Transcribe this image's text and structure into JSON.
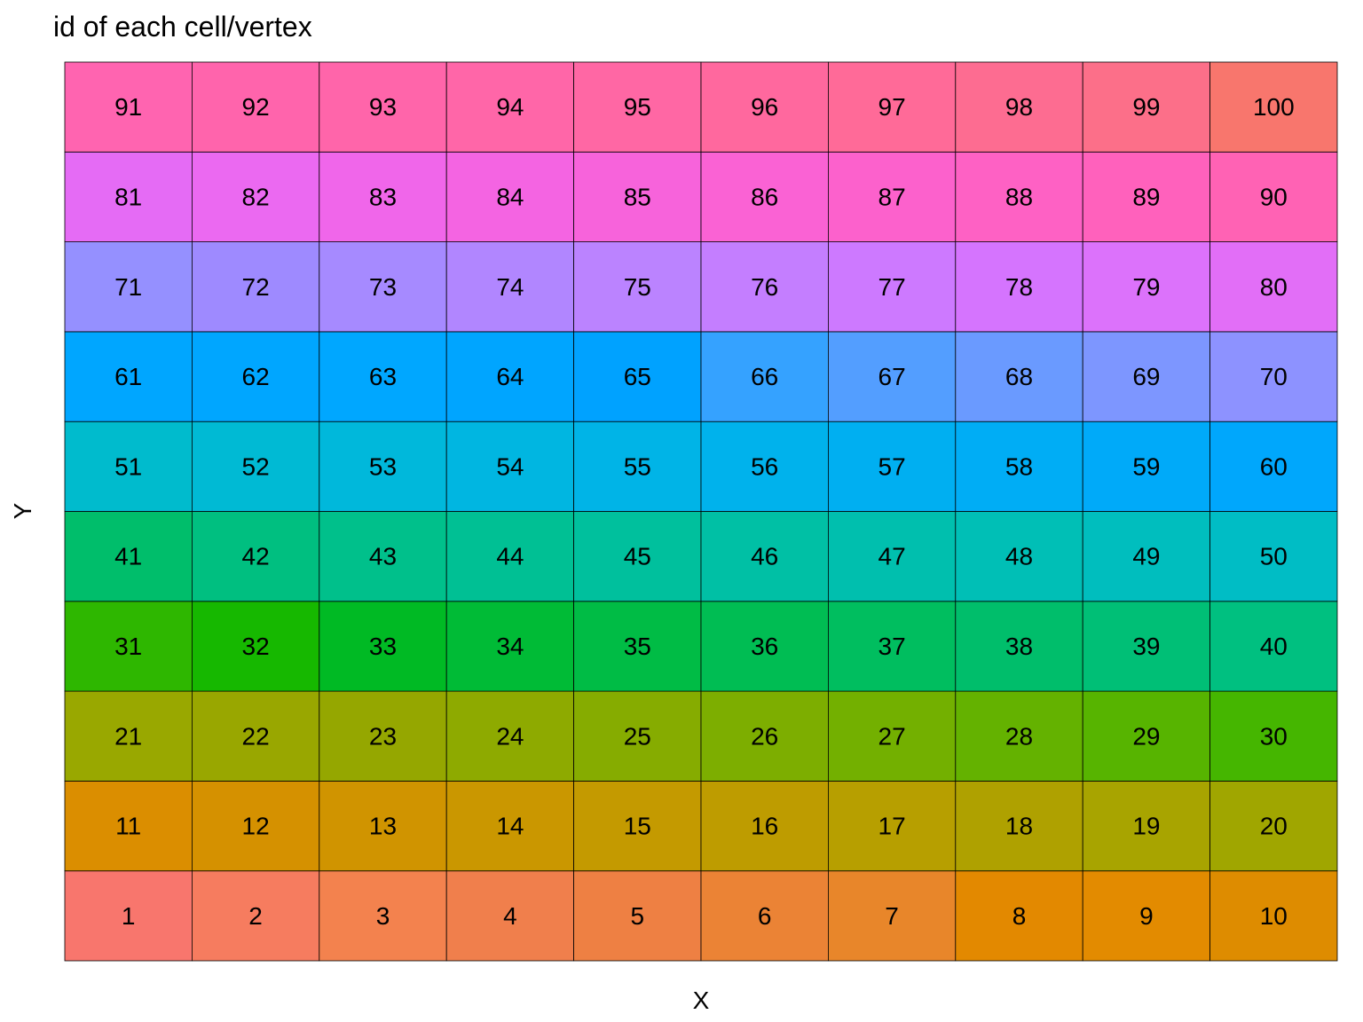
{
  "chart_data": {
    "type": "heatmap",
    "title": "id of each cell/vertex",
    "xlabel": "X",
    "ylabel": "Y",
    "ncols": 10,
    "nrows": 10,
    "ids": [
      1,
      2,
      3,
      4,
      5,
      6,
      7,
      8,
      9,
      10,
      11,
      12,
      13,
      14,
      15,
      16,
      17,
      18,
      19,
      20,
      21,
      22,
      23,
      24,
      25,
      26,
      27,
      28,
      29,
      30,
      31,
      32,
      33,
      34,
      35,
      36,
      37,
      38,
      39,
      40,
      41,
      42,
      43,
      44,
      45,
      46,
      47,
      48,
      49,
      50,
      51,
      52,
      53,
      54,
      55,
      56,
      57,
      58,
      59,
      60,
      61,
      62,
      63,
      64,
      65,
      66,
      67,
      68,
      69,
      70,
      71,
      72,
      73,
      74,
      75,
      76,
      77,
      78,
      79,
      80,
      81,
      82,
      83,
      84,
      85,
      86,
      87,
      88,
      89,
      90,
      91,
      92,
      93,
      94,
      95,
      96,
      97,
      98,
      99,
      100
    ],
    "colors": [
      "#F8766D",
      "#F67C5F",
      "#F3824E",
      "#F07F4C",
      "#EE8043",
      "#EB8335",
      "#E8862A",
      "#E38900",
      "#E38B00",
      "#DE8C00",
      "#DB8E00",
      "#D59100",
      "#D09400",
      "#CA9700",
      "#C49A00",
      "#BE9C00",
      "#B79F00",
      "#AFA100",
      "#A8A400",
      "#A0A600",
      "#99A800",
      "#99A700",
      "#95A700",
      "#8EAA00",
      "#86AC00",
      "#7DAE00",
      "#73B000",
      "#64B200",
      "#57B400",
      "#45B600",
      "#2EB700",
      "#16B800",
      "#00BA24",
      "#00BB36",
      "#00BC45",
      "#00BD53",
      "#00BE5F",
      "#00BE6B",
      "#00BF76",
      "#00C080",
      "#00BE6B",
      "#00BF80",
      "#00C08B",
      "#00C094",
      "#00C09D",
      "#00C0A5",
      "#00BFAE",
      "#00BFB6",
      "#00BEBE",
      "#00BDC5",
      "#00BBCD",
      "#00BAD4",
      "#00B8DB",
      "#00B6E1",
      "#00B4E7",
      "#00B2EC",
      "#00AFF1",
      "#00ADF5",
      "#00AAF9",
      "#00A7FC",
      "#00A6FF",
      "#00A6FF",
      "#00A7FF",
      "#00A5FF",
      "#00A2FF",
      "#35A2FF",
      "#539EFF",
      "#6A9AFF",
      "#7D96FF",
      "#8D92FF",
      "#9590FF",
      "#9E8AFF",
      "#A68AFF",
      "#B186FF",
      "#BB83FF",
      "#C47EFF",
      "#CD79FF",
      "#D574FE",
      "#DC72FB",
      "#E26EF7",
      "#E56BF5",
      "#EB69F1",
      "#F066EA",
      "#F464E2",
      "#F763DB",
      "#FA62D4",
      "#FC61CC",
      "#FE61C4",
      "#FF61BC",
      "#FF62B4",
      "#FF64B0",
      "#FF64AC",
      "#FF65AA",
      "#FF66A8",
      "#FF67A4",
      "#FF689E",
      "#FF6A98",
      "#FD6C91",
      "#FC6F89",
      "#F8766D"
    ]
  }
}
